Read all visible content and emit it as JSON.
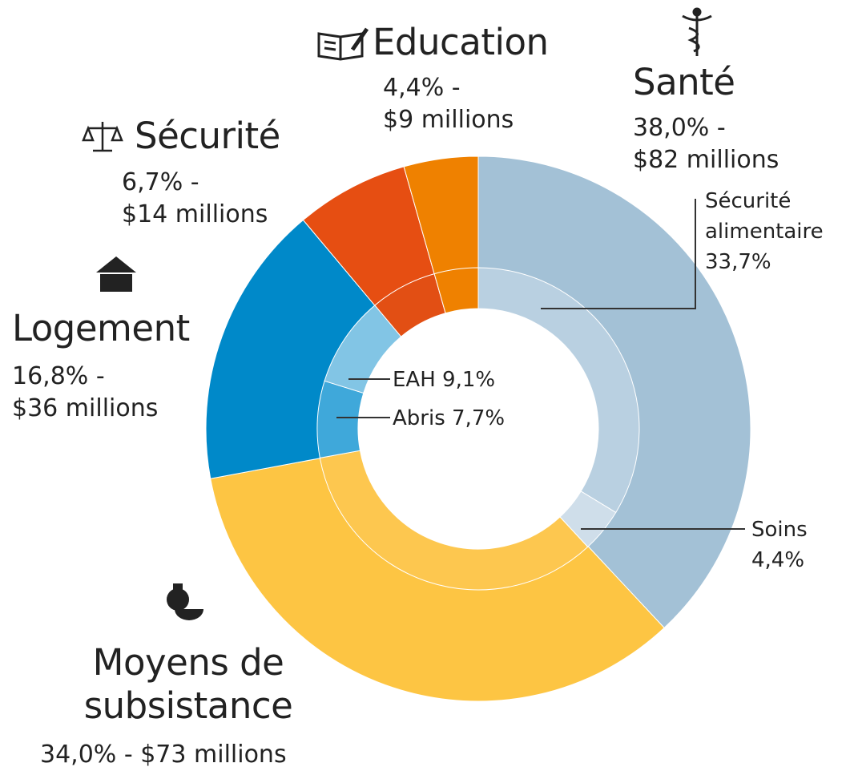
{
  "chart_data": {
    "type": "donut",
    "outer": {
      "categories": [
        "Santé",
        "Moyens de\nsubsistance",
        "Logement",
        "Sécurité",
        "Education"
      ],
      "values": [
        38.0,
        34.0,
        16.8,
        6.7,
        4.4
      ],
      "value_labels": [
        "38,0% -",
        "34,0% -",
        "16,8% -",
        "6,7% -",
        "4,4% -"
      ],
      "amounts": [
        82,
        73,
        36,
        14,
        9
      ],
      "amount_labels": [
        "$82 millions",
        "$73 millions",
        "$36 millions",
        "$14 millions",
        "$9 millions"
      ],
      "colors": [
        "#a3c1d6",
        "#fdc543",
        "#0089c9",
        "#e64e12",
        "#ef8100"
      ]
    },
    "inner": {
      "categories": [
        "Sécurité\nalimentaire",
        "Soins",
        null,
        "Abris",
        "EAH",
        null,
        null
      ],
      "values": [
        33.7,
        4.4,
        34.0,
        7.7,
        9.1,
        6.7,
        4.4
      ],
      "value_labels": [
        "33,7%",
        "4,4%",
        null,
        "7,7%",
        "9,1%",
        null,
        null
      ],
      "colors": [
        "#b9d0e1",
        "#cfdeea",
        "#fdc74f",
        "#3fa8da",
        "#82c5e5",
        "#e24f14",
        "#ef8100"
      ]
    }
  }
}
